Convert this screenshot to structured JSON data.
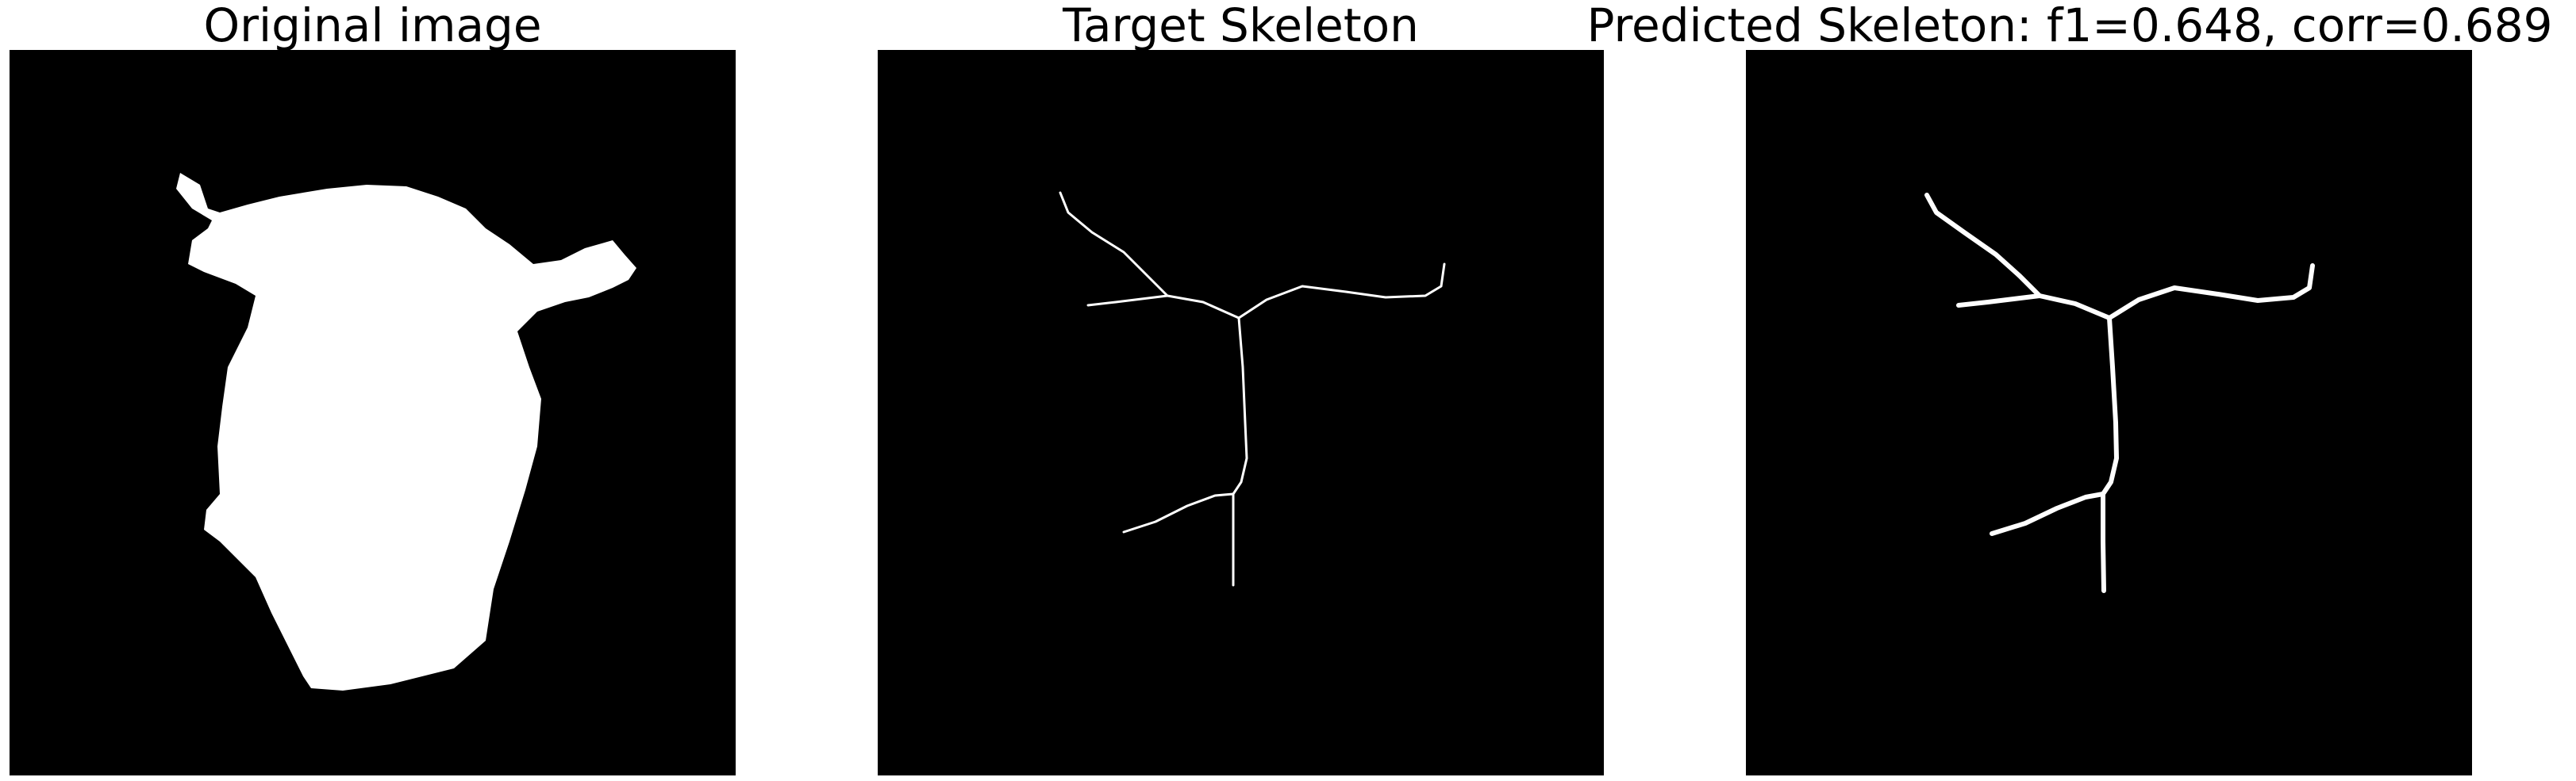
{
  "panels": [
    {
      "title": "Original image"
    },
    {
      "title": "Target Skeleton"
    },
    {
      "title": "Predicted Skeleton: f1=0.648, corr=0.689"
    }
  ],
  "colors": {
    "background": "#000000",
    "foreground": "#ffffff",
    "page": "#ffffff",
    "text": "#000000"
  }
}
